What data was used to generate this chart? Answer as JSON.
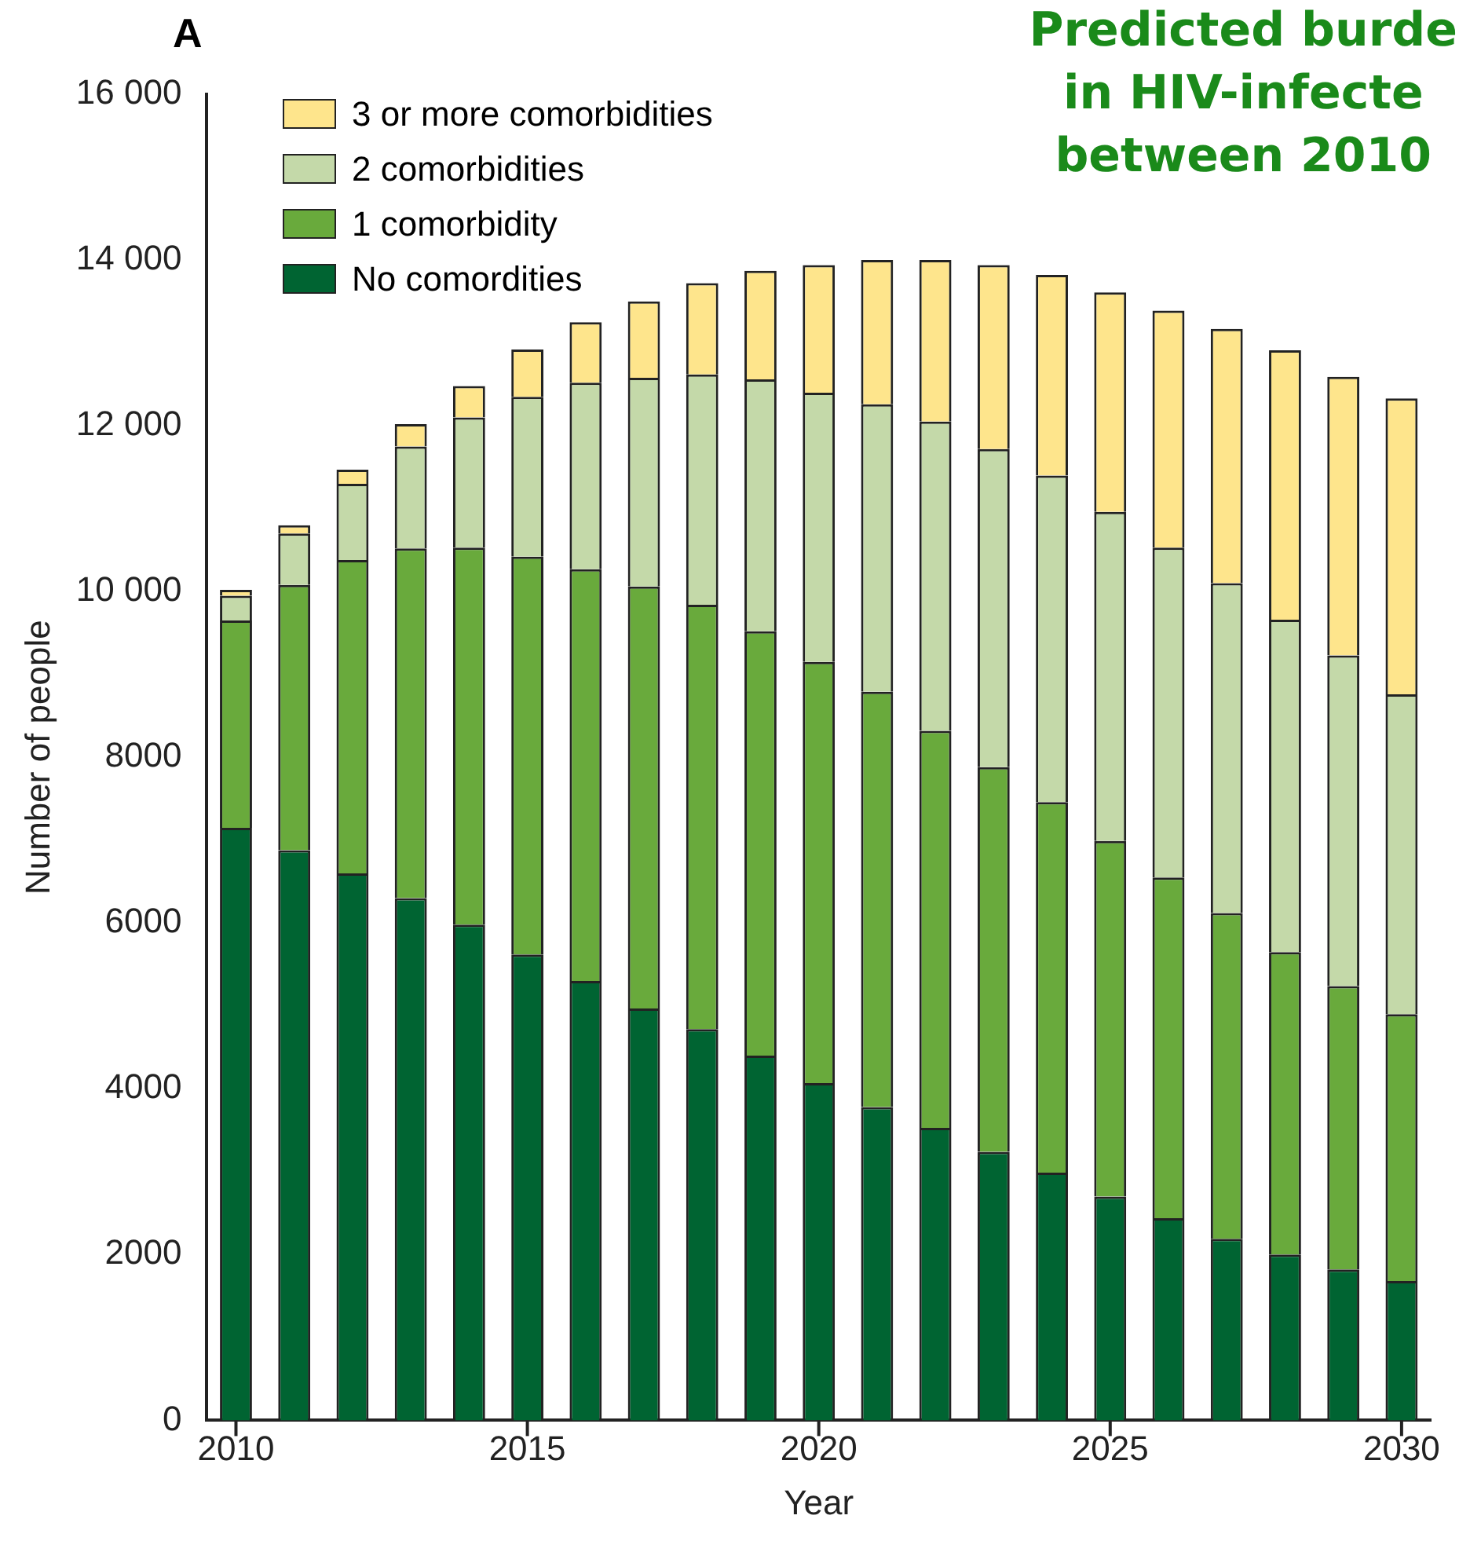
{
  "chart_data": {
    "type": "bar",
    "title": "Predicted burde\nin HIV-infecte\nbetween 2010",
    "xlabel": "Year",
    "ylabel": "Number of people",
    "annotations": [
      "A"
    ],
    "categories": [
      "2010",
      null,
      null,
      null,
      null,
      "2015",
      null,
      null,
      null,
      null,
      "2020",
      null,
      null,
      null,
      null,
      "2025",
      null,
      null,
      null,
      null,
      "2030"
    ],
    "stacked": true,
    "legend": "top left",
    "grid": false,
    "ylim": [
      0,
      16000
    ],
    "yticks": [
      0,
      2000,
      4000,
      6000,
      8000,
      {
        "value": 10000,
        "label": "10 000"
      },
      {
        "value": 12000,
        "label": "12 000"
      },
      {
        "value": 14000,
        "label": "14 000"
      },
      {
        "value": 16000,
        "label": "16 000"
      }
    ],
    "series": [
      {
        "name": "No comordities",
        "color": "#006432",
        "values": [
          7150,
          6880,
          6600,
          6300,
          5980,
          5620,
          5300,
          4970,
          4720,
          4400,
          4070,
          3780,
          3530,
          3240,
          2990,
          2700,
          2440,
          2190,
          2000,
          1820,
          1680
        ]
      },
      {
        "name": "1 comorbidity",
        "color": "#69aa3c",
        "values": [
          2500,
          3200,
          3780,
          4220,
          4550,
          4800,
          4970,
          5090,
          5120,
          5120,
          5080,
          5010,
          4790,
          4640,
          4470,
          4290,
          4110,
          3930,
          3650,
          3420,
          3220
        ]
      },
      {
        "name": "2 comorbidities",
        "color": "#c4d9a9",
        "values": [
          300,
          620,
          920,
          1230,
          1570,
          1930,
          2250,
          2520,
          2780,
          3040,
          3250,
          3470,
          3730,
          3840,
          3940,
          3970,
          3980,
          3980,
          4010,
          3990,
          3860
        ]
      },
      {
        "name": "3 or more comorbidities",
        "color": "#fee58c",
        "values": [
          70,
          100,
          170,
          270,
          380,
          570,
          730,
          920,
          1100,
          1310,
          1540,
          1740,
          1950,
          2220,
          2420,
          2650,
          2860,
          3070,
          3250,
          3360,
          3570
        ]
      }
    ]
  }
}
